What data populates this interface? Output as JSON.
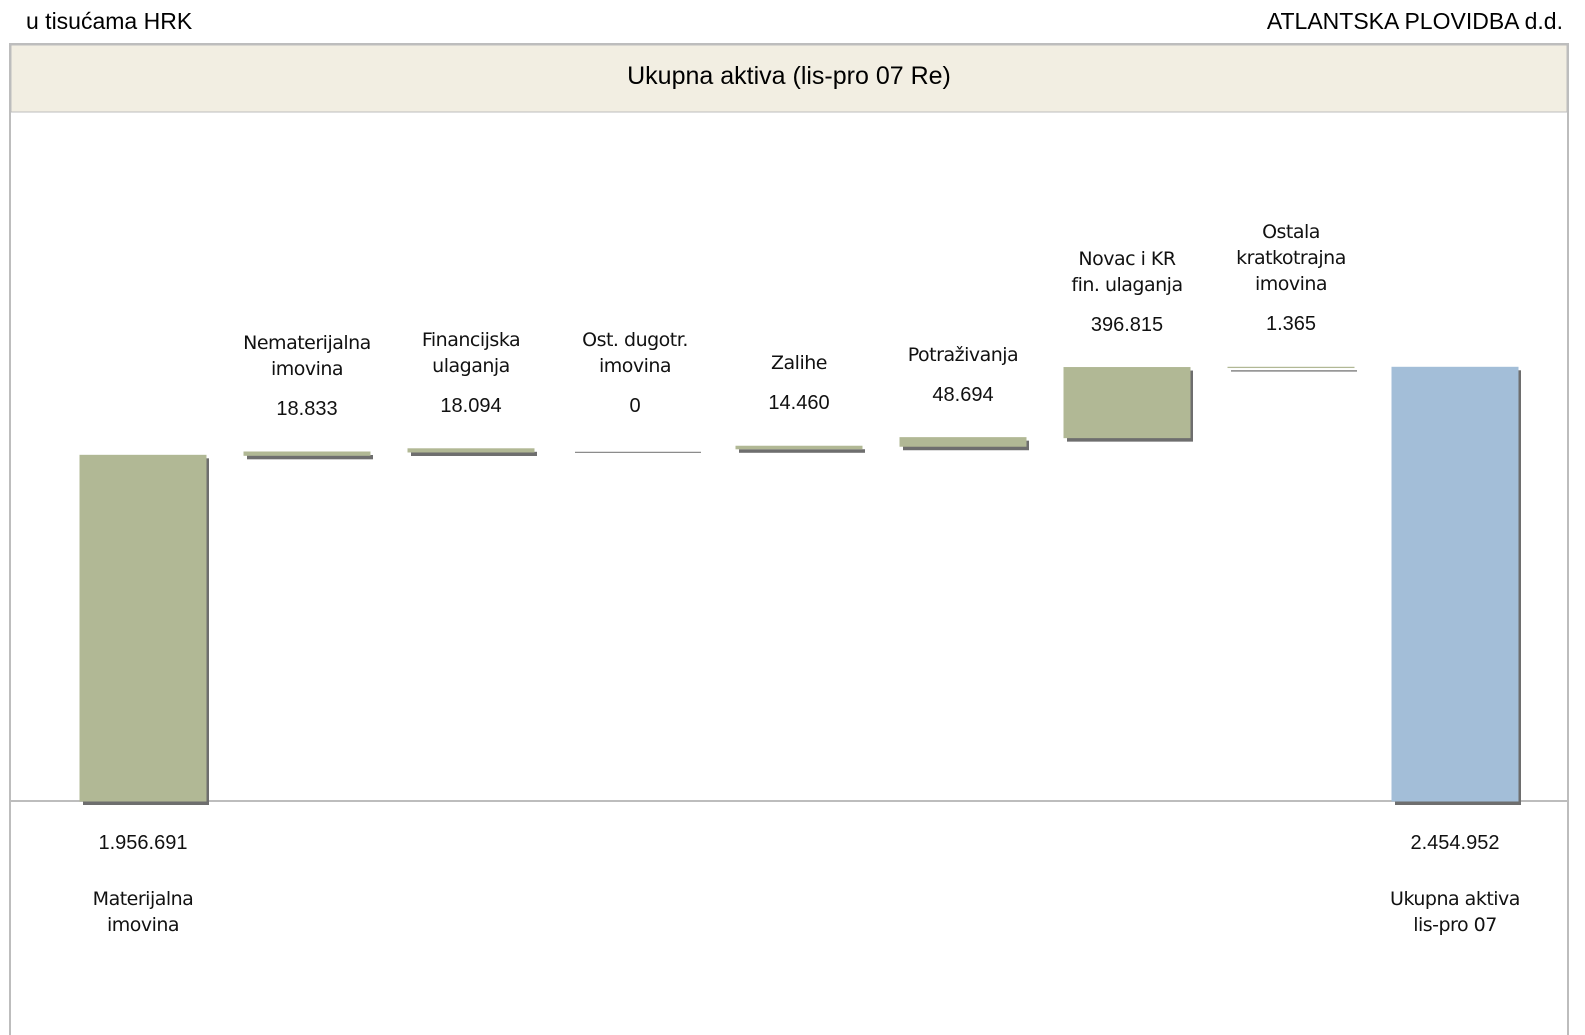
{
  "header": {
    "unit": "u tisućama HRK",
    "company": "ATLANTSKA PLOVIDBA d.d."
  },
  "chart_data": {
    "type": "waterfall",
    "title": "Ukupna aktiva (lis-pro 07 Re)",
    "categories": [
      "Materijalna\nimovina",
      "Nematerijalna\nimovina",
      "Financijska\nulaganja",
      "Ost. dugotr.\nimovina",
      "Zalihe",
      "Potraživanja",
      "Novac i KR\nfin. ulaganja",
      "Ostala\nkratkotrajna\nimovina",
      "Ukupna aktiva\nlis-pro 07"
    ],
    "values": [
      1956691,
      18833,
      18094,
      0,
      14460,
      48694,
      396815,
      1365,
      2454952
    ],
    "value_labels": [
      "1.956.691",
      "18.833",
      "18.094",
      "0",
      "14.460",
      "48.694",
      "396.815",
      "1.365",
      "2.454.952"
    ],
    "colors": [
      "#b1b895",
      "#b1b895",
      "#b1b895",
      "#b1b895",
      "#b1b895",
      "#b1b895",
      "#b1b895",
      "#b1b895",
      "#a3bed8"
    ],
    "ylim": [
      0,
      3900000
    ]
  }
}
